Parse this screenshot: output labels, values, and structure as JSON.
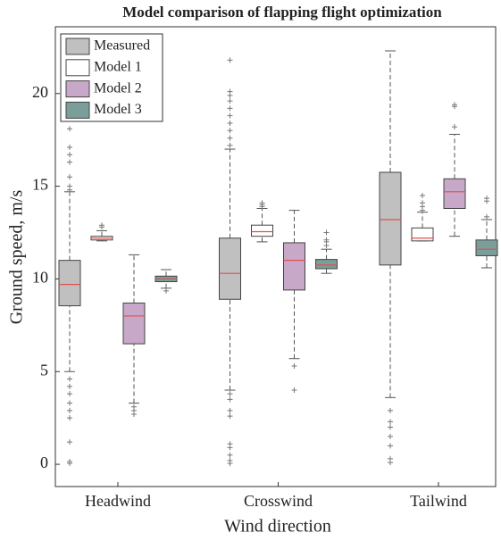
{
  "chart_data": {
    "type": "box",
    "title": "Model comparison of flapping flight optimization",
    "x_label": "Wind direction",
    "y_label": "Ground speed, m/s",
    "categories": [
      "Headwind",
      "Crosswind",
      "Tailwind"
    ],
    "ylim": [
      -1.2,
      23.6
    ],
    "yticks": [
      0,
      5,
      10,
      15,
      20
    ],
    "legend": "upper left",
    "median_color": "#e0504f",
    "series": [
      {
        "name": "Measured",
        "color": "#c0c0c0",
        "boxes": [
          {
            "whisker_low": 5.0,
            "q1": 8.55,
            "median": 9.7,
            "q3": 11.0,
            "whisker_high": 14.7,
            "outliers": [
              4.6,
              4.2,
              3.8,
              3.3,
              2.9,
              2.5,
              1.2,
              0.15,
              0.05,
              14.8,
              15.0,
              15.5,
              16.3,
              16.7,
              17.1,
              18.1
            ]
          },
          {
            "whisker_low": 4.0,
            "q1": 8.9,
            "median": 10.3,
            "q3": 12.2,
            "whisker_high": 17.0,
            "outliers": [
              3.8,
              3.5,
              2.9,
              2.6,
              1.1,
              0.9,
              0.5,
              0.2,
              0.05,
              17.2,
              17.6,
              18.0,
              18.4,
              18.8,
              19.2,
              19.6,
              19.9,
              20.1,
              21.8
            ]
          },
          {
            "whisker_low": 3.6,
            "q1": 10.75,
            "median": 13.2,
            "q3": 15.75,
            "whisker_high": 22.3,
            "outliers": [
              2.9,
              2.3,
              2.0,
              1.5,
              1.0,
              0.3,
              0.1
            ]
          }
        ]
      },
      {
        "name": "Model 1",
        "color": "#ffffff",
        "boxes": [
          {
            "whisker_low": 12.05,
            "q1": 12.1,
            "median": 12.2,
            "q3": 12.3,
            "whisker_high": 12.6,
            "outliers": [
              12.8,
              12.9
            ]
          },
          {
            "whisker_low": 12.0,
            "q1": 12.3,
            "median": 12.55,
            "q3": 12.9,
            "whisker_high": 13.8,
            "outliers": [
              13.9,
              14.0,
              14.1
            ]
          },
          {
            "whisker_low": 12.05,
            "q1": 12.05,
            "median": 12.2,
            "q3": 12.75,
            "whisker_high": 13.6,
            "outliers": [
              13.7,
              13.9,
              14.1,
              14.5
            ]
          }
        ]
      },
      {
        "name": "Model 2",
        "color": "#c8a8c8",
        "boxes": [
          {
            "whisker_low": 3.3,
            "q1": 6.5,
            "median": 8.0,
            "q3": 8.7,
            "whisker_high": 11.3,
            "outliers": [
              3.1,
              2.9,
              2.7
            ]
          },
          {
            "whisker_low": 5.7,
            "q1": 9.4,
            "median": 11.0,
            "q3": 11.95,
            "whisker_high": 13.7,
            "outliers": [
              5.3,
              4.0
            ]
          },
          {
            "whisker_low": 12.3,
            "q1": 13.8,
            "median": 14.7,
            "q3": 15.4,
            "whisker_high": 17.8,
            "outliers": [
              18.2,
              19.3,
              19.4
            ]
          }
        ]
      },
      {
        "name": "Model 3",
        "color": "#7a9e9a",
        "boxes": [
          {
            "whisker_low": 9.5,
            "q1": 9.85,
            "median": 10.0,
            "q3": 10.15,
            "whisker_high": 10.5,
            "outliers": [
              9.35
            ]
          },
          {
            "whisker_low": 10.3,
            "q1": 10.55,
            "median": 10.75,
            "q3": 11.05,
            "whisker_high": 11.6,
            "outliers": [
              11.8,
              12.0,
              12.1,
              12.5
            ]
          },
          {
            "whisker_low": 10.6,
            "q1": 11.25,
            "median": 11.6,
            "q3": 12.1,
            "whisker_high": 13.2,
            "outliers": [
              13.35,
              14.2,
              14.35
            ]
          }
        ]
      }
    ]
  }
}
